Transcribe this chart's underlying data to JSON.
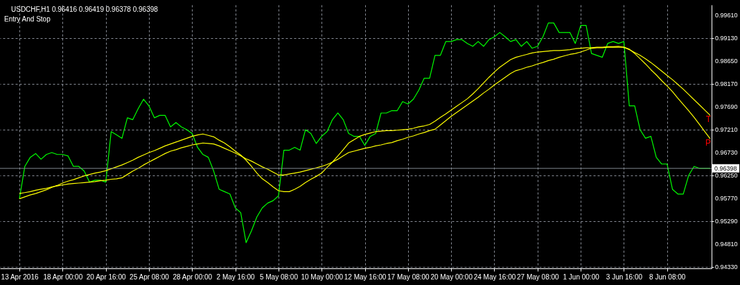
{
  "chart_data": {
    "type": "line",
    "title": "USDCHF,H1  0.96416 0.96419 0.96378 0.96398",
    "subtitle": "Entry And Stop",
    "categories": [
      "13 Apr 2016",
      null,
      null,
      null,
      null,
      null,
      null,
      null,
      "18 Apr 00:00",
      null,
      null,
      null,
      null,
      null,
      null,
      null,
      "20 Apr 16:00",
      null,
      null,
      null,
      null,
      null,
      null,
      null,
      "25 Apr 08:00",
      null,
      null,
      null,
      null,
      null,
      null,
      null,
      "28 Apr 00:00",
      null,
      null,
      null,
      null,
      null,
      null,
      null,
      "2 May 16:00",
      null,
      null,
      null,
      null,
      null,
      null,
      null,
      "5 May 08:00",
      null,
      null,
      null,
      null,
      null,
      null,
      null,
      "10 May 00:00",
      null,
      null,
      null,
      null,
      null,
      null,
      null,
      "12 May 16:00",
      null,
      null,
      null,
      null,
      null,
      null,
      null,
      "17 May 08:00",
      null,
      null,
      null,
      null,
      null,
      null,
      null,
      "20 May 00:00",
      null,
      null,
      null,
      null,
      null,
      null,
      null,
      "24 May 16:00",
      null,
      null,
      null,
      null,
      null,
      null,
      null,
      "27 May 08:00",
      null,
      null,
      null,
      null,
      null,
      null,
      null,
      "1 Jun 00:00",
      null,
      null,
      null,
      null,
      null,
      null,
      null,
      "3 Jun 16:00",
      null,
      null,
      null,
      null,
      null,
      null,
      null,
      "8 Jun 08:00",
      null,
      null,
      null,
      null,
      null,
      null,
      null,
      null
    ],
    "ylim": [
      0.943,
      0.9983
    ],
    "grid": true,
    "yticks": [
      {
        "value": 0.9961,
        "label": "0.99610"
      },
      {
        "value": 0.9913,
        "label": "0.99130"
      },
      {
        "value": 0.9865,
        "label": "0.98650"
      },
      {
        "value": 0.9817,
        "label": "0.98170"
      },
      {
        "value": 0.9769,
        "label": "0.97690"
      },
      {
        "value": 0.9721,
        "label": "0.97210"
      },
      {
        "value": 0.9673,
        "label": "0.96730"
      },
      {
        "value": 0.9625,
        "label": "0.96250"
      },
      {
        "value": 0.9577,
        "label": "0.95770"
      },
      {
        "value": 0.9529,
        "label": "0.95290"
      },
      {
        "value": 0.9481,
        "label": "0.94810"
      },
      {
        "value": 0.9433,
        "label": "0.94330"
      }
    ],
    "ref_lines": [
      {
        "axis": "y",
        "value": 0.96398,
        "label": "0.96398",
        "color": "#808890"
      }
    ],
    "annotations": [
      "T",
      "P"
    ],
    "series": [
      {
        "color": "#00ff00",
        "values": [
          0.9576,
          0.9644,
          0.9663,
          0.9671,
          0.9659,
          0.9669,
          0.9673,
          0.9669,
          0.9669,
          0.9666,
          0.9644,
          0.9644,
          0.9634,
          0.9611,
          0.9615,
          0.9615,
          0.9611,
          0.9717,
          0.971,
          0.9703,
          0.9746,
          0.9742,
          0.9765,
          0.9785,
          0.9771,
          0.9746,
          0.9751,
          0.9751,
          0.9727,
          0.9736,
          0.9727,
          0.9721,
          0.9713,
          0.9684,
          0.9669,
          0.9663,
          0.9634,
          0.9596,
          0.9591,
          0.9586,
          0.9557,
          0.9547,
          0.9484,
          0.9509,
          0.9538,
          0.9557,
          0.9567,
          0.9572,
          0.9582,
          0.9678,
          0.9678,
          0.9684,
          0.9678,
          0.9721,
          0.9713,
          0.9692,
          0.9707,
          0.9717,
          0.9742,
          0.9756,
          0.9742,
          0.9713,
          0.9707,
          0.9707,
          0.9688,
          0.9707,
          0.9713,
          0.9756,
          0.9756,
          0.9761,
          0.9761,
          0.978,
          0.9775,
          0.9785,
          0.9804,
          0.9829,
          0.9829,
          0.9877,
          0.9877,
          0.9906,
          0.9906,
          0.991,
          0.991,
          0.9902,
          0.9896,
          0.9906,
          0.9896,
          0.991,
          0.9916,
          0.9925,
          0.9916,
          0.9906,
          0.991,
          0.9896,
          0.9906,
          0.9892,
          0.9896,
          0.9916,
          0.9945,
          0.9945,
          0.9925,
          0.9925,
          0.9925,
          0.9902,
          0.994,
          0.994,
          0.9881,
          0.9877,
          0.9873,
          0.9902,
          0.9906,
          0.9902,
          0.9906,
          0.9771,
          0.9771,
          0.9721,
          0.9703,
          0.9707,
          0.9663,
          0.9649,
          0.9649,
          0.9596,
          0.9586,
          0.9586,
          0.9625,
          0.9644,
          0.964,
          0.964,
          0.964
        ]
      },
      {
        "color": "#ffff00",
        "values": [
          0.9576,
          0.958,
          0.9584,
          0.9587,
          0.9591,
          0.9595,
          0.96,
          0.9604,
          0.9609,
          0.9613,
          0.9616,
          0.962,
          0.9624,
          0.9627,
          0.963,
          0.9632,
          0.9635,
          0.9639,
          0.9643,
          0.9647,
          0.9652,
          0.9657,
          0.9663,
          0.9668,
          0.9673,
          0.9677,
          0.9682,
          0.9687,
          0.9691,
          0.9695,
          0.9699,
          0.9703,
          0.9707,
          0.971,
          0.9712,
          0.9709,
          0.9706,
          0.9699,
          0.9693,
          0.9685,
          0.9676,
          0.9668,
          0.9657,
          0.9644,
          0.963,
          0.9618,
          0.961,
          0.9601,
          0.9593,
          0.9591,
          0.9591,
          0.9596,
          0.9602,
          0.961,
          0.9617,
          0.9623,
          0.963,
          0.9642,
          0.9653,
          0.9666,
          0.9679,
          0.9693,
          0.97,
          0.9707,
          0.9711,
          0.9714,
          0.9717,
          0.9718,
          0.9719,
          0.9719,
          0.972,
          0.9721,
          0.9722,
          0.9724,
          0.9727,
          0.9729,
          0.9732,
          0.9739,
          0.9747,
          0.9754,
          0.9762,
          0.977,
          0.9778,
          0.9786,
          0.9796,
          0.9807,
          0.9819,
          0.9831,
          0.9842,
          0.9852,
          0.986,
          0.9868,
          0.9873,
          0.9876,
          0.9879,
          0.9882,
          0.9884,
          0.9885,
          0.9886,
          0.9887,
          0.9887,
          0.9888,
          0.9889,
          0.9891,
          0.9892,
          0.9893,
          0.9893,
          0.9894,
          0.9894,
          0.9895,
          0.9895,
          0.9896,
          0.9894,
          0.989,
          0.9881,
          0.987,
          0.9859,
          0.9847,
          0.9836,
          0.9824,
          0.9813,
          0.9801,
          0.9787,
          0.9774,
          0.9761,
          0.9747,
          0.9732,
          0.9717,
          0.9702
        ]
      },
      {
        "color": "#ffff00",
        "values": [
          0.9587,
          0.9589,
          0.9591,
          0.9594,
          0.9596,
          0.9598,
          0.9601,
          0.9603,
          0.9605,
          0.9607,
          0.9608,
          0.9609,
          0.961,
          0.9611,
          0.9612,
          0.9614,
          0.9615,
          0.9617,
          0.9618,
          0.962,
          0.9627,
          0.9634,
          0.964,
          0.9647,
          0.9653,
          0.9659,
          0.9665,
          0.9671,
          0.9676,
          0.9679,
          0.9683,
          0.9686,
          0.9689,
          0.9691,
          0.9693,
          0.9692,
          0.9691,
          0.9687,
          0.9682,
          0.9677,
          0.9672,
          0.9666,
          0.966,
          0.9655,
          0.9649,
          0.9643,
          0.9638,
          0.9632,
          0.9626,
          0.9626,
          0.9628,
          0.963,
          0.9632,
          0.9635,
          0.9638,
          0.9641,
          0.9644,
          0.9648,
          0.9653,
          0.9659,
          0.9666,
          0.9673,
          0.9676,
          0.9679,
          0.9682,
          0.9684,
          0.9687,
          0.9689,
          0.9692,
          0.9694,
          0.9698,
          0.9701,
          0.9705,
          0.9708,
          0.9712,
          0.9715,
          0.9719,
          0.9722,
          0.9731,
          0.974,
          0.9749,
          0.9757,
          0.9765,
          0.9773,
          0.9781,
          0.9789,
          0.9798,
          0.9806,
          0.9815,
          0.9823,
          0.9831,
          0.9839,
          0.9845,
          0.9848,
          0.9852,
          0.9855,
          0.9859,
          0.9862,
          0.9866,
          0.9869,
          0.9873,
          0.9876,
          0.9879,
          0.9881,
          0.9884,
          0.9888,
          0.9892,
          0.9893,
          0.9893,
          0.9894,
          0.9894,
          0.9894,
          0.9894,
          0.9889,
          0.9883,
          0.9877,
          0.987,
          0.9862,
          0.9853,
          0.9844,
          0.9835,
          0.9826,
          0.9816,
          0.9806,
          0.9795,
          0.9784,
          0.9773,
          0.9762,
          0.9751
        ]
      }
    ]
  }
}
